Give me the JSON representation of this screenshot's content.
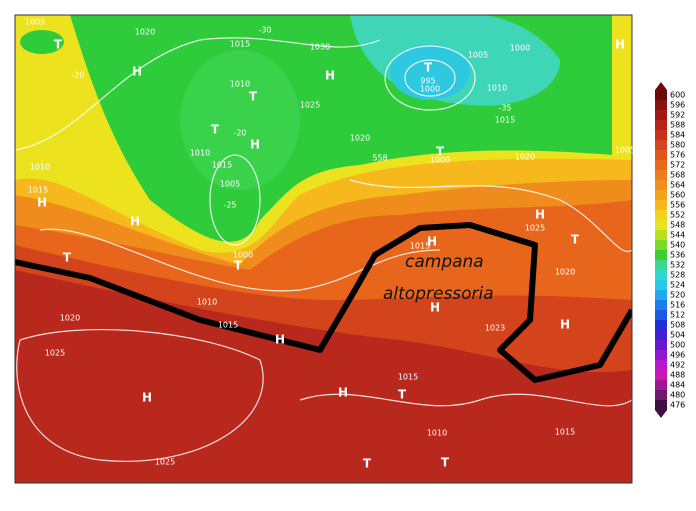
{
  "legend": {
    "levels": [
      600,
      596,
      592,
      588,
      584,
      580,
      576,
      572,
      568,
      564,
      560,
      556,
      552,
      548,
      544,
      540,
      536,
      532,
      528,
      524,
      520,
      516,
      512,
      508,
      504,
      500,
      496,
      492,
      488,
      484,
      480,
      476
    ],
    "colors": [
      "#6b0a0a",
      "#8b1010",
      "#a01a14",
      "#b5251a",
      "#c8321c",
      "#d6431c",
      "#e0561c",
      "#e8681c",
      "#ee7b1c",
      "#f28e1c",
      "#f5a21c",
      "#f8b81c",
      "#f5d21e",
      "#e6e41e",
      "#b8e01e",
      "#7ed826",
      "#40cc30",
      "#38d890",
      "#30d8c8",
      "#28c8e8",
      "#20a8f0",
      "#1a80f0",
      "#1a58e8",
      "#2030d8",
      "#4020d0",
      "#6818d0",
      "#9018d0",
      "#b818d0",
      "#c818b0",
      "#a01890",
      "#701870",
      "#401040"
    ]
  },
  "annotation": [
    "campana",
    "altopressoria"
  ],
  "map_labels": [
    "1005",
    "T",
    "1020",
    "H",
    "-20",
    "1015",
    "1030",
    "-30",
    "1010",
    "T",
    "H",
    "1025",
    "-20",
    "T",
    "1010",
    "H",
    "1015",
    "1005",
    "-25",
    "995",
    "1000",
    "T",
    "1005",
    "1000",
    "H",
    "1010",
    "-35",
    "1015",
    "1020",
    "558",
    "T",
    "1000",
    "1020",
    "1005",
    "H",
    "1025",
    "T",
    "1020",
    "1010",
    "H",
    "1015",
    "H",
    "T",
    "1000",
    "T",
    "1010",
    "1015",
    "H",
    "1020",
    "1025",
    "H",
    "1025",
    "1015",
    "H",
    "T",
    "1010",
    "T",
    "T",
    "H",
    "1023",
    "H",
    "1015",
    "H",
    "1015"
  ]
}
